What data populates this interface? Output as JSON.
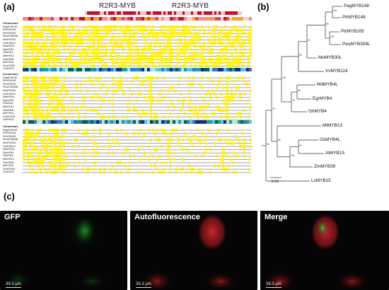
{
  "panels": {
    "a": {
      "label": "(a)",
      "domains": [
        "R2R3-MYB",
        "R2R3-MYB"
      ],
      "consensus_label": "Consensus",
      "sequences": [
        "PagMYB148",
        "PtrMYB148",
        "PtrMYB205",
        "PeuMYB308L",
        "MeMYB30L",
        "VvMYB114",
        "MdMYB4L",
        "EgrMYB4",
        "GhMYB4",
        "MtMYB13",
        "OsMYB4L",
        "AtMYB15",
        "ZmMYB39",
        "LsMYB15"
      ]
    },
    "b": {
      "label": "(b)",
      "taxa": [
        "PagMYB148",
        "PtrMYB148",
        "PtrMYB205",
        "PeuMYB308L",
        "MeMYB30L",
        "VvMYB114",
        "MdMYB4L",
        "EgrMYB4",
        "GhMYB4",
        "MtMYB13",
        "OsMYB4L",
        "AtMYB15",
        "ZmMYB39",
        "LsMYB15"
      ],
      "bootstrap": [
        "100",
        "100",
        "99",
        "97",
        "99",
        "98",
        "78",
        "100",
        "99",
        "100",
        "86",
        "76",
        "96"
      ],
      "scale_label": "0.10"
    },
    "c": {
      "label": "(c)",
      "images": [
        {
          "title": "GFP",
          "scale": "39.3 μm"
        },
        {
          "title": "Autofluorescence",
          "scale": "39.3 μm"
        },
        {
          "title": "Merge",
          "scale": "39.3 μm"
        }
      ]
    }
  },
  "colors": {
    "identity_high": "#fff200",
    "identity_mid": "#cfe8ff",
    "domain_bar": "#c8102e",
    "gfp": "#1fbf2a",
    "chloroplast": "#c0242a",
    "micro_bg": "#050505"
  }
}
